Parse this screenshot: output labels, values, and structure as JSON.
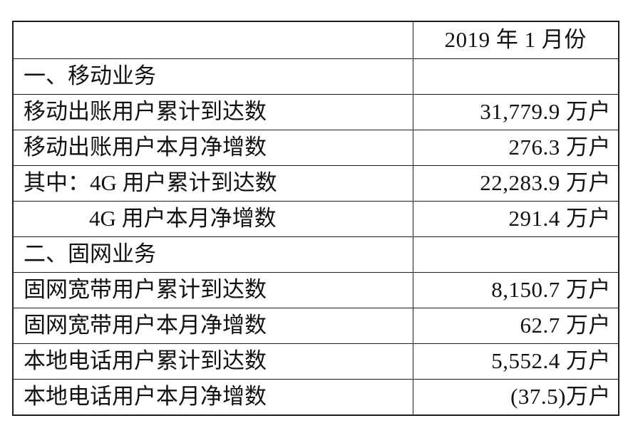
{
  "document": {
    "background": "#ffffff",
    "text_color": "#111111",
    "border_color": "#1c1c1c"
  },
  "table": {
    "header": {
      "label": "",
      "period": "2019 年 1 月份"
    },
    "rows": [
      {
        "label": "一、移动业务",
        "value": "",
        "kind": "section"
      },
      {
        "label": "移动出账用户累计到达数",
        "value": "31,779.9 万户",
        "kind": "data"
      },
      {
        "label": "移动出账用户本月净增数",
        "value": "276.3 万户",
        "kind": "data"
      },
      {
        "label": "其中：4G 用户累计到达数",
        "value": "22,283.9 万户",
        "kind": "data"
      },
      {
        "label": "4G 用户本月净增数",
        "value": "291.4 万户",
        "kind": "data-indented"
      },
      {
        "label": "二、固网业务",
        "value": "",
        "kind": "section"
      },
      {
        "label": "固网宽带用户累计到达数",
        "value": "8,150.7 万户",
        "kind": "data"
      },
      {
        "label": "固网宽带用户本月净增数",
        "value": "62.7 万户",
        "kind": "data"
      },
      {
        "label": "本地电话用户累计到达数",
        "value": "5,552.4 万户",
        "kind": "data"
      },
      {
        "label": "本地电话用户本月净增数",
        "value": "(37.5)万户",
        "kind": "data"
      }
    ]
  }
}
